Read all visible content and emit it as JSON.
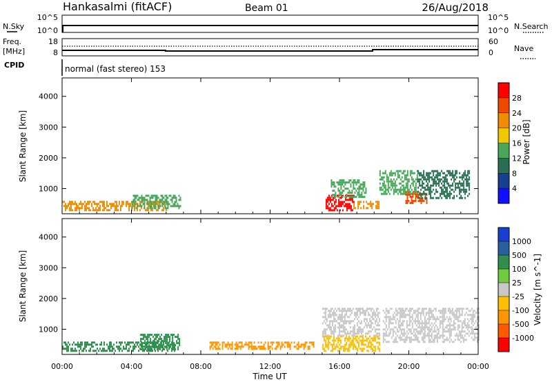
{
  "header": {
    "title": "Hankasalmi (fitACF)",
    "beam": "Beam 01",
    "date": "26/Aug/2018"
  },
  "sky_panel": {
    "left_label": "N.Sky",
    "right_label": "N.Search",
    "left_ticks": [
      "10^5",
      "10^0"
    ],
    "right_ticks": [
      "10^5",
      "10^0"
    ]
  },
  "freq_panel": {
    "left_label_1": "Freq.",
    "left_label_2": "[MHz]",
    "right_label": "Nave",
    "left_ticks": [
      "18",
      "8"
    ],
    "right_ticks": [
      "60",
      "0"
    ]
  },
  "cpid": {
    "label": "CPID",
    "program": "normal (fast stereo) 153"
  },
  "time_axis": {
    "label": "Time UT",
    "ticks": [
      "00:00",
      "04:00",
      "08:00",
      "12:00",
      "16:00",
      "20:00",
      "00:00"
    ]
  },
  "colors": {
    "power": [
      "#1010ff",
      "#1a3f8f",
      "#2b6f53",
      "#4aa65a",
      "#f0c800",
      "#f08c00",
      "#f04a00",
      "#ff0000"
    ],
    "velocity": [
      "#ff0000",
      "#ff5a00",
      "#ff9500",
      "#ffbf00",
      "#c8c8c8",
      "#6ecb3c",
      "#2e8f4e",
      "#2a5fa0",
      "#1a3fd0"
    ]
  },
  "chart_data": [
    {
      "type": "heatmap",
      "title": "",
      "xlabel": "",
      "ylabel": "Slant Range [km]",
      "y_ticks": [
        "1000",
        "2000",
        "3000",
        "4000"
      ],
      "ylim": [
        180,
        4600
      ],
      "xlim_hours": [
        0,
        24
      ],
      "colorbar_label": "Power [dB]",
      "colorbar_ticks": [
        "4",
        "8",
        "12",
        "16",
        "20",
        "24",
        "28"
      ],
      "regions": [
        {
          "t0": 0.0,
          "t1": 6.0,
          "r0": 300,
          "r1": 600,
          "level": 5
        },
        {
          "t0": 4.0,
          "t1": 6.8,
          "r0": 350,
          "r1": 800,
          "level": 3
        },
        {
          "t0": 15.2,
          "t1": 16.8,
          "r0": 300,
          "r1": 800,
          "level": 7
        },
        {
          "t0": 16.8,
          "t1": 18.3,
          "r0": 350,
          "r1": 600,
          "level": 5
        },
        {
          "t0": 15.5,
          "t1": 17.5,
          "r0": 700,
          "r1": 1300,
          "level": 3
        },
        {
          "t0": 18.3,
          "t1": 20.5,
          "r0": 800,
          "r1": 1600,
          "level": 3
        },
        {
          "t0": 19.8,
          "t1": 21.0,
          "r0": 500,
          "r1": 900,
          "level": 6
        },
        {
          "t0": 20.5,
          "t1": 23.5,
          "r0": 700,
          "r1": 1600,
          "level": 2
        }
      ]
    },
    {
      "type": "heatmap",
      "title": "",
      "xlabel": "Time UT",
      "ylabel": "Slant Range [km]",
      "y_ticks": [
        "1000",
        "2000",
        "3000",
        "4000"
      ],
      "ylim": [
        180,
        4600
      ],
      "xlim_hours": [
        0,
        24
      ],
      "colorbar_label": "Velocity [m s^-1]",
      "colorbar_ticks": [
        "1000",
        "500",
        "100",
        "25",
        "-25",
        "-100",
        "-500",
        "-1000"
      ],
      "regions": [
        {
          "t0": 0.0,
          "t1": 6.5,
          "r0": 300,
          "r1": 600,
          "level": 6
        },
        {
          "t0": 4.5,
          "t1": 6.8,
          "r0": 350,
          "r1": 850,
          "level": 6
        },
        {
          "t0": 8.5,
          "t1": 14.5,
          "r0": 380,
          "r1": 600,
          "level": 2
        },
        {
          "t0": 15.0,
          "t1": 18.3,
          "r0": 300,
          "r1": 800,
          "level": 3
        },
        {
          "t0": 15.0,
          "t1": 18.3,
          "r0": 800,
          "r1": 1700,
          "level": 4
        },
        {
          "t0": 18.5,
          "t1": 24.0,
          "r0": 600,
          "r1": 1700,
          "level": 4
        }
      ]
    }
  ]
}
